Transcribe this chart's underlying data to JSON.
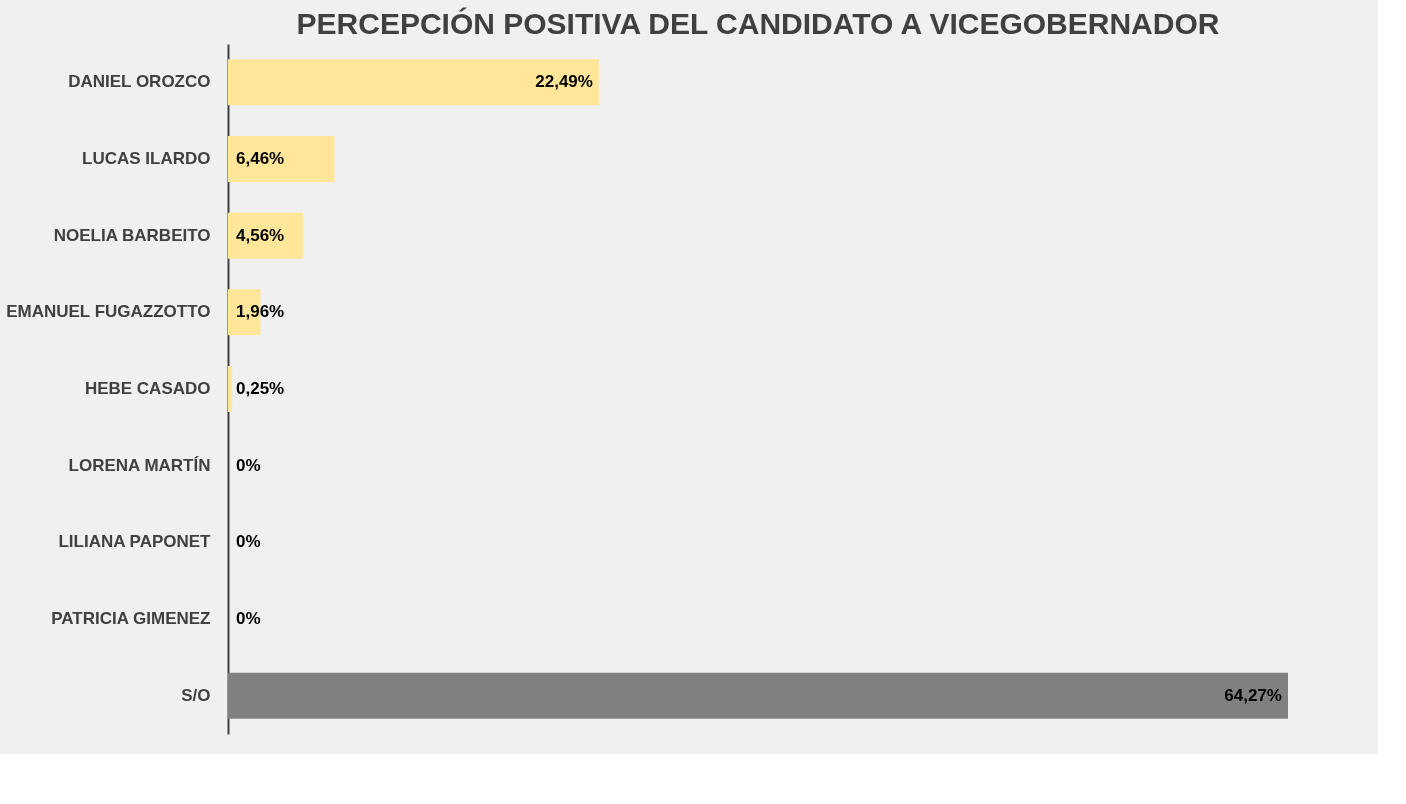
{
  "chart_data": {
    "type": "bar",
    "orientation": "horizontal",
    "title": "PERCEPCIÓN POSITIVA DEL CANDIDATO A VICEGOBERNADOR",
    "categories": [
      "DANIEL OROZCO",
      "LUCAS ILARDO",
      "NOELIA BARBEITO",
      "EMANUEL FUGAZZOTTO",
      "HEBE CASADO",
      "LORENA MARTÍN",
      "LILIANA PAPONET",
      "PATRICIA GIMENEZ",
      "S/O"
    ],
    "values": [
      22.49,
      6.46,
      4.56,
      1.96,
      0.25,
      0,
      0,
      0,
      64.27
    ],
    "colors": [
      "#ffe699",
      "#ffe699",
      "#ffe699",
      "#ffe699",
      "#ffe699",
      "#ffe699",
      "#ffe699",
      "#ffe699",
      "#808080"
    ],
    "value_labels": [
      "22,49%",
      "6,46%",
      "4,56%",
      "1,96%",
      "0,25%",
      "0%",
      "0%",
      "0%",
      "64,27%"
    ],
    "grid": false
  }
}
